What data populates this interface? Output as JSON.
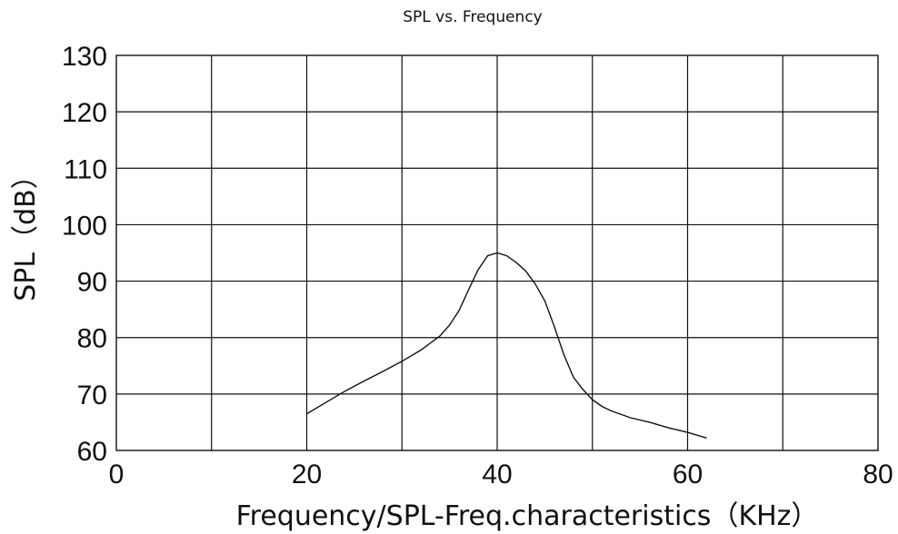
{
  "chart_data": {
    "type": "line",
    "title": "SPL vs. Frequency",
    "xlabel": "Frequency/SPL-Freq.characteristics（KHz）",
    "ylabel": "SPL（dB）",
    "xlim": [
      0,
      80
    ],
    "ylim": [
      60,
      130
    ],
    "x_tick_labels": [
      "0",
      "20",
      "40",
      "60",
      "80"
    ],
    "y_tick_labels": [
      "60",
      "70",
      "80",
      "90",
      "100",
      "110",
      "120",
      "130"
    ],
    "grid": true,
    "series": [
      {
        "x": [
          20,
          22,
          24,
          26,
          28,
          30,
          32,
          34,
          35,
          36,
          37,
          38,
          39,
          40,
          41,
          42,
          43,
          44,
          45,
          46,
          47,
          48,
          49,
          50,
          51,
          52,
          54,
          56,
          58,
          60,
          62
        ],
        "y": [
          66.5,
          68.5,
          70.5,
          72.3,
          74.0,
          75.8,
          77.8,
          80.3,
          82.2,
          84.8,
          88.5,
          92.0,
          94.5,
          95.0,
          94.5,
          93.3,
          91.8,
          89.5,
          86.5,
          82.0,
          77.0,
          73.0,
          70.8,
          69.0,
          67.8,
          67.0,
          65.8,
          65.0,
          64.0,
          63.2,
          62.2
        ]
      }
    ],
    "line_color": "#111111"
  }
}
